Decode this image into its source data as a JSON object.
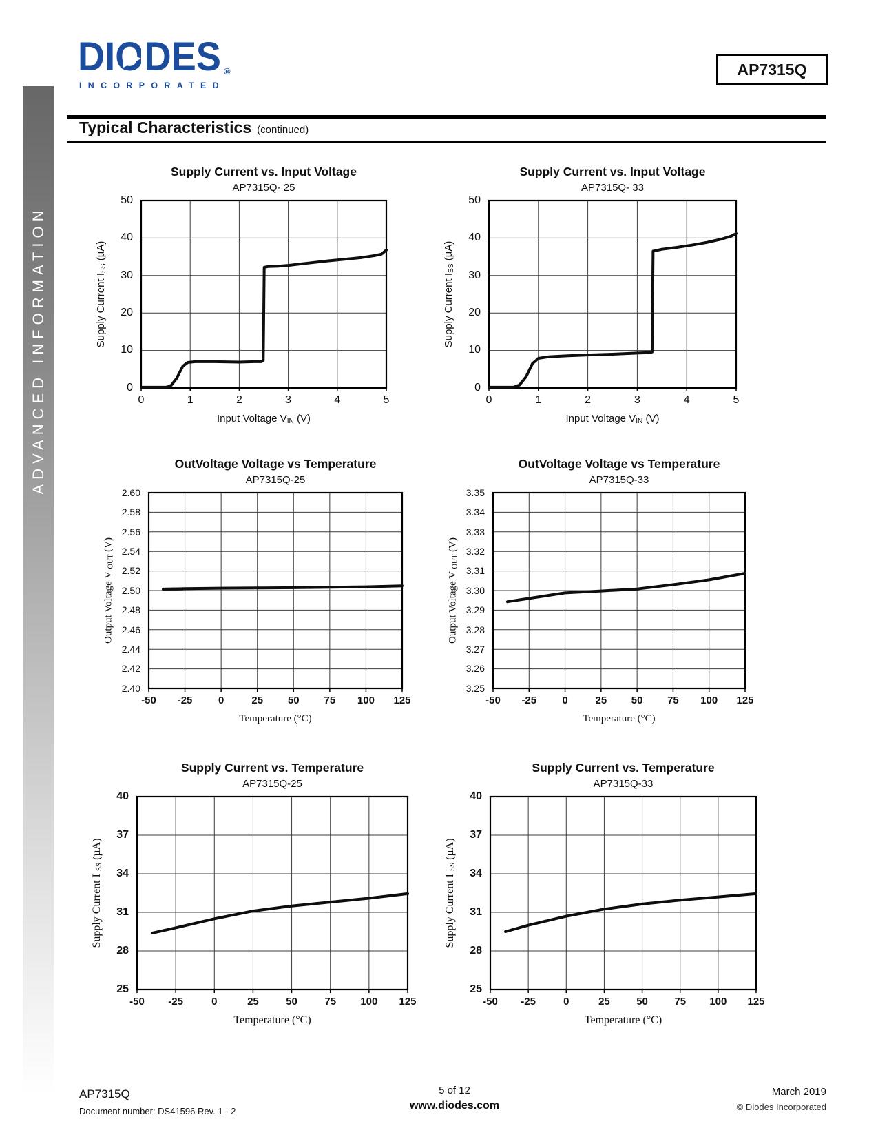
{
  "sidebar": {
    "text": "ADVANCED INFORMATION"
  },
  "header": {
    "logo_text": "DIODES",
    "logo_registered": "®",
    "logo_sub": "INCORPORATED",
    "part_number": "AP7315Q",
    "section_title": "Typical Characteristics",
    "section_suffix": "(continued)"
  },
  "footer": {
    "part": "AP7315Q",
    "doc_number": "Document number: DS41596 Rev. 1 - 2",
    "page_info": "5 of 12",
    "website": "www.diodes.com",
    "date": "March 2019",
    "copyright": "© Diodes Incorporated"
  },
  "chart_data": [
    {
      "type": "line",
      "title": "Supply Current vs. Input Voltage",
      "subtitle": "AP7315Q- 25",
      "xlabel": {
        "pre": "Input Voltage V",
        "sub": "IN",
        "post": " (V)"
      },
      "ylabel": {
        "pre": "Supply Current I",
        "sub": "SS",
        "post": " (µA)"
      },
      "xlim": [
        0,
        5
      ],
      "ylim": [
        0,
        50
      ],
      "xticks": [
        0,
        1,
        2,
        3,
        4,
        5
      ],
      "yticks": [
        0,
        10,
        20,
        30,
        40,
        50
      ],
      "x": [
        0,
        0.5,
        0.6,
        0.72,
        0.85,
        0.95,
        1.1,
        1.5,
        2.0,
        2.3,
        2.45,
        2.49,
        2.51,
        2.6,
        2.8,
        3.0,
        3.4,
        3.8,
        4.2,
        4.5,
        4.75,
        4.9,
        5.0
      ],
      "y": [
        0.2,
        0.2,
        0.5,
        2.5,
        5.8,
        6.8,
        7.0,
        7.0,
        6.9,
        7.0,
        7.0,
        7.3,
        32.2,
        32.4,
        32.5,
        32.7,
        33.3,
        33.9,
        34.4,
        34.8,
        35.3,
        35.7,
        36.8
      ],
      "layout": {
        "grid": true,
        "legend": "none",
        "serif_labels": false,
        "bold_xticks": false,
        "bold_yticks": false,
        "ydecimals": 0,
        "tick_size": 16,
        "ytick_size": 16,
        "label_size": 15
      }
    },
    {
      "type": "line",
      "title": "Supply Current vs. Input Voltage",
      "subtitle": "AP7315Q- 33",
      "xlabel": {
        "pre": "Input Voltage V",
        "sub": "IN",
        "post": " (V)"
      },
      "ylabel": {
        "pre": "Supply Current I",
        "sub": "SS",
        "post": " (µA)"
      },
      "xlim": [
        0,
        5
      ],
      "ylim": [
        0,
        50
      ],
      "xticks": [
        0,
        1,
        2,
        3,
        4,
        5
      ],
      "yticks": [
        0,
        10,
        20,
        30,
        40,
        50
      ],
      "x": [
        0,
        0.5,
        0.62,
        0.75,
        0.88,
        1.0,
        1.2,
        1.6,
        2.0,
        2.5,
        3.0,
        3.2,
        3.27,
        3.3,
        3.32,
        3.5,
        3.8,
        4.1,
        4.4,
        4.7,
        4.9,
        5.0
      ],
      "y": [
        0.2,
        0.2,
        0.8,
        3.0,
        6.5,
        7.9,
        8.3,
        8.6,
        8.8,
        9.0,
        9.3,
        9.4,
        9.5,
        9.6,
        36.5,
        37.0,
        37.5,
        38.1,
        38.8,
        39.7,
        40.5,
        41.2
      ],
      "layout": {
        "grid": true,
        "legend": "none",
        "serif_labels": false,
        "bold_xticks": false,
        "bold_yticks": false,
        "ydecimals": 0,
        "tick_size": 16,
        "ytick_size": 16,
        "label_size": 15
      }
    },
    {
      "type": "line",
      "title": "OutVoltage Voltage vs Temperature",
      "subtitle": "AP7315Q-25",
      "xlabel": {
        "pre": "Temperature  (°C)",
        "sub": "",
        "post": ""
      },
      "ylabel": {
        "pre": "Output Voltage V ",
        "sub": "OUT",
        "post": " (V)"
      },
      "xlim": [
        -50,
        125
      ],
      "ylim": [
        2.4,
        2.6
      ],
      "xticks": [
        -50,
        -25,
        0,
        25,
        50,
        75,
        100,
        125
      ],
      "yticks": [
        2.4,
        2.42,
        2.44,
        2.46,
        2.48,
        2.5,
        2.52,
        2.54,
        2.56,
        2.58,
        2.6
      ],
      "x": [
        -40,
        -25,
        0,
        25,
        50,
        75,
        100,
        125
      ],
      "y": [
        2.5015,
        2.5019,
        2.5024,
        2.5026,
        2.5029,
        2.5033,
        2.5038,
        2.5048
      ],
      "layout": {
        "grid": true,
        "legend": "none",
        "serif_labels": true,
        "bold_xticks": true,
        "bold_yticks": false,
        "ydecimals": 2,
        "tick_size": 15,
        "ytick_size": 14,
        "label_size": 15
      }
    },
    {
      "type": "line",
      "title": "OutVoltage Voltage vs Temperature",
      "subtitle": "AP7315Q-33",
      "xlabel": {
        "pre": "Temperature  (°C)",
        "sub": "",
        "post": ""
      },
      "ylabel": {
        "pre": "Output Voltage V ",
        "sub": "OUT",
        "post": " (V)"
      },
      "xlim": [
        -50,
        125
      ],
      "ylim": [
        3.25,
        3.35
      ],
      "xticks": [
        -50,
        -25,
        0,
        25,
        50,
        75,
        100,
        125
      ],
      "yticks": [
        3.25,
        3.26,
        3.27,
        3.28,
        3.29,
        3.3,
        3.31,
        3.32,
        3.33,
        3.34,
        3.35
      ],
      "x": [
        -40,
        -25,
        0,
        25,
        50,
        75,
        100,
        125
      ],
      "y": [
        3.2943,
        3.296,
        3.2988,
        3.2998,
        3.3008,
        3.303,
        3.3055,
        3.3088
      ],
      "layout": {
        "grid": true,
        "legend": "none",
        "serif_labels": true,
        "bold_xticks": true,
        "bold_yticks": false,
        "ydecimals": 2,
        "tick_size": 15,
        "ytick_size": 14,
        "label_size": 15
      }
    },
    {
      "type": "line",
      "title": "Supply Current vs. Temperature",
      "subtitle": "AP7315Q-25",
      "xlabel": {
        "pre": "Temperature  (°C)",
        "sub": "",
        "post": ""
      },
      "ylabel": {
        "pre": "Supply Current I ",
        "sub": "SS",
        "post": " (µA)"
      },
      "xlim": [
        -50,
        125
      ],
      "ylim": [
        25,
        40
      ],
      "xticks": [
        -50,
        -25,
        0,
        25,
        50,
        75,
        100,
        125
      ],
      "yticks": [
        25,
        28,
        31,
        34,
        37,
        40
      ],
      "x": [
        -40,
        -25,
        0,
        25,
        50,
        75,
        100,
        125
      ],
      "y": [
        29.4,
        29.8,
        30.5,
        31.1,
        31.5,
        31.8,
        32.1,
        32.45
      ],
      "layout": {
        "grid": true,
        "legend": "none",
        "serif_labels": true,
        "bold_xticks": true,
        "bold_yticks": true,
        "ydecimals": 0,
        "tick_size": 15,
        "ytick_size": 16,
        "label_size": 16
      }
    },
    {
      "type": "line",
      "title": "Supply Current vs. Temperature",
      "subtitle": "AP7315Q-33",
      "xlabel": {
        "pre": "Temperature  (°C)",
        "sub": "",
        "post": ""
      },
      "ylabel": {
        "pre": "Supply Current I ",
        "sub": "SS",
        "post": " (µA)"
      },
      "xlim": [
        -50,
        125
      ],
      "ylim": [
        25,
        40
      ],
      "xticks": [
        -50,
        -25,
        0,
        25,
        50,
        75,
        100,
        125
      ],
      "yticks": [
        25,
        28,
        31,
        34,
        37,
        40
      ],
      "x": [
        -40,
        -25,
        0,
        25,
        50,
        75,
        100,
        125
      ],
      "y": [
        29.5,
        30.0,
        30.7,
        31.25,
        31.65,
        31.95,
        32.2,
        32.45
      ],
      "layout": {
        "grid": true,
        "legend": "none",
        "serif_labels": true,
        "bold_xticks": true,
        "bold_yticks": true,
        "ydecimals": 0,
        "tick_size": 15,
        "ytick_size": 16,
        "label_size": 16
      }
    }
  ],
  "colors": {
    "logo_blue": "#1b4d9c",
    "curve": "#0d0d0d",
    "grid": "#3c3c3c",
    "sidebar_text": "#ffffff"
  }
}
